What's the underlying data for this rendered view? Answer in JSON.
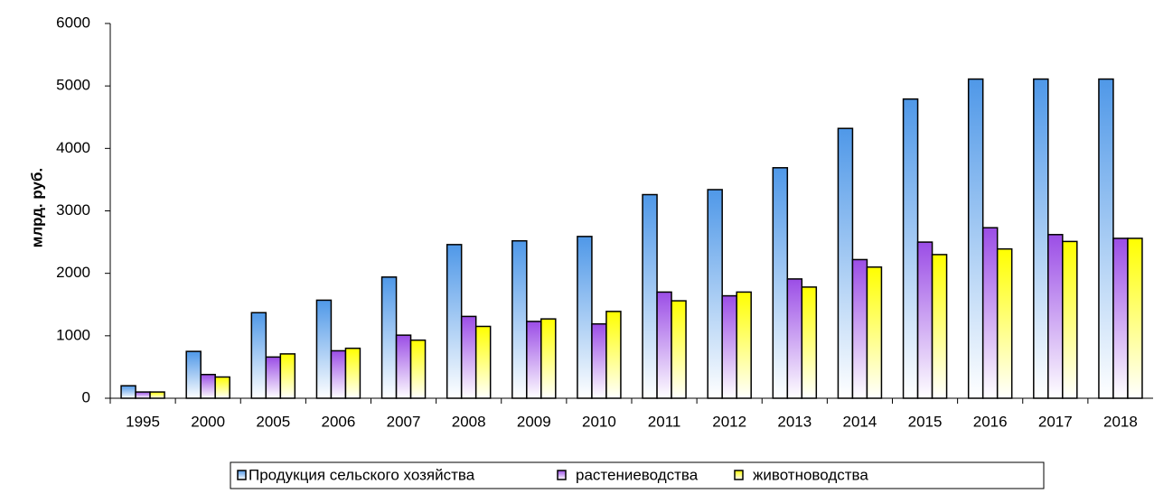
{
  "chart_data": {
    "type": "bar",
    "y_label": "млрд. руб.",
    "categories": [
      "1995",
      "2000",
      "2005",
      "2006",
      "2007",
      "2008",
      "2009",
      "2010",
      "2011",
      "2012",
      "2013",
      "2014",
      "2015",
      "2016",
      "2017",
      "2018"
    ],
    "series": [
      {
        "name": "Продукция сельского хозяйства",
        "color": "#4f98e8",
        "values": [
          200,
          750,
          1370,
          1570,
          1940,
          2460,
          2520,
          2590,
          3260,
          3340,
          3690,
          4320,
          4790,
          5110,
          5110,
          5110
        ]
      },
      {
        "name": "растениеводства",
        "color": "#9b4de6",
        "values": [
          100,
          380,
          660,
          760,
          1010,
          1310,
          1230,
          1190,
          1700,
          1640,
          1910,
          2220,
          2500,
          2730,
          2620,
          2560
        ]
      },
      {
        "name": "животноводства",
        "color": "#ffff00",
        "values": [
          100,
          340,
          710,
          800,
          930,
          1150,
          1270,
          1390,
          1560,
          1700,
          1780,
          2100,
          2300,
          2390,
          2510,
          2560
        ]
      }
    ],
    "ylim": [
      0,
      6000
    ],
    "yticks": [
      0,
      1000,
      2000,
      3000,
      4000,
      5000,
      6000
    ],
    "grid": false,
    "legend": "bottom"
  }
}
